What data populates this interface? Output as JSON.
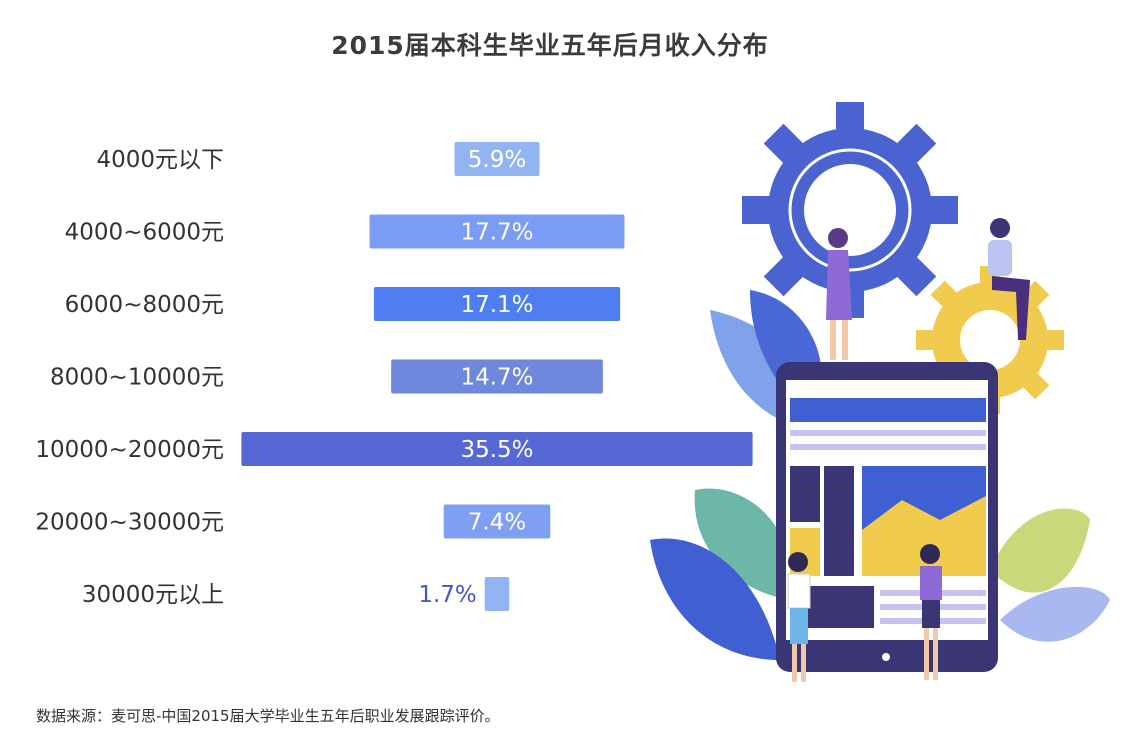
{
  "title": "2015届本科生毕业五年后月收入分布",
  "source": "数据来源：麦可思-中国2015届大学毕业生五年后职业发展跟踪评价。",
  "chart_data": {
    "type": "bar",
    "orientation": "horizontal",
    "alignment": "centered",
    "title": "2015届本科生毕业五年后月收入分布",
    "unit": "%",
    "categories": [
      "4000元以下",
      "4000~6000元",
      "6000~8000元",
      "8000~10000元",
      "10000~20000元",
      "20000~30000元",
      "30000元以上"
    ],
    "values": [
      5.9,
      17.7,
      17.1,
      14.7,
      35.5,
      7.4,
      1.7
    ],
    "labels": [
      "5.9%",
      "17.7%",
      "17.1%",
      "14.7%",
      "35.5%",
      "7.4%",
      "1.7%"
    ],
    "colors": [
      "#93b4f2",
      "#7b9cf5",
      "#4f7ef2",
      "#6f87dc",
      "#5568d6",
      "#7f9ff3",
      "#93b4f2"
    ],
    "label_color_inside": "#ffffff",
    "label_color_outside": "#4655c8",
    "grid": false,
    "legend": "none"
  }
}
